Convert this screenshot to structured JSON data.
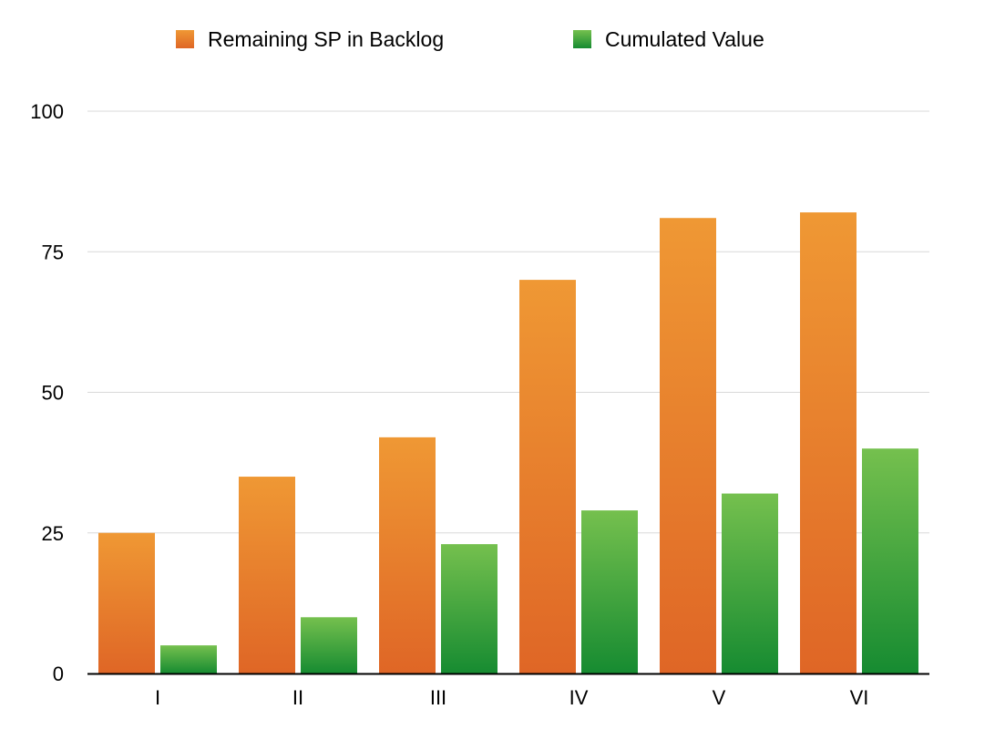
{
  "chart_data": {
    "type": "bar",
    "categories": [
      "I",
      "II",
      "III",
      "IV",
      "V",
      "VI"
    ],
    "series": [
      {
        "name": "Remaining SP in Backlog",
        "values": [
          25,
          35,
          42,
          70,
          81,
          82
        ]
      },
      {
        "name": "Cumulated Value",
        "values": [
          5,
          10,
          23,
          29,
          32,
          40
        ]
      }
    ],
    "title": "",
    "xlabel": "",
    "ylabel": "",
    "ylim": [
      0,
      100
    ],
    "yticks": [
      0,
      25,
      50,
      75,
      100
    ],
    "grid": true,
    "legend": "top-center"
  },
  "colors": {
    "series": [
      {
        "top": "#ef9834",
        "bottom": "#df6626"
      },
      {
        "top": "#75c04e",
        "bottom": "#168b31"
      }
    ],
    "grid": "#d9d9d9",
    "axis": "#000000"
  }
}
